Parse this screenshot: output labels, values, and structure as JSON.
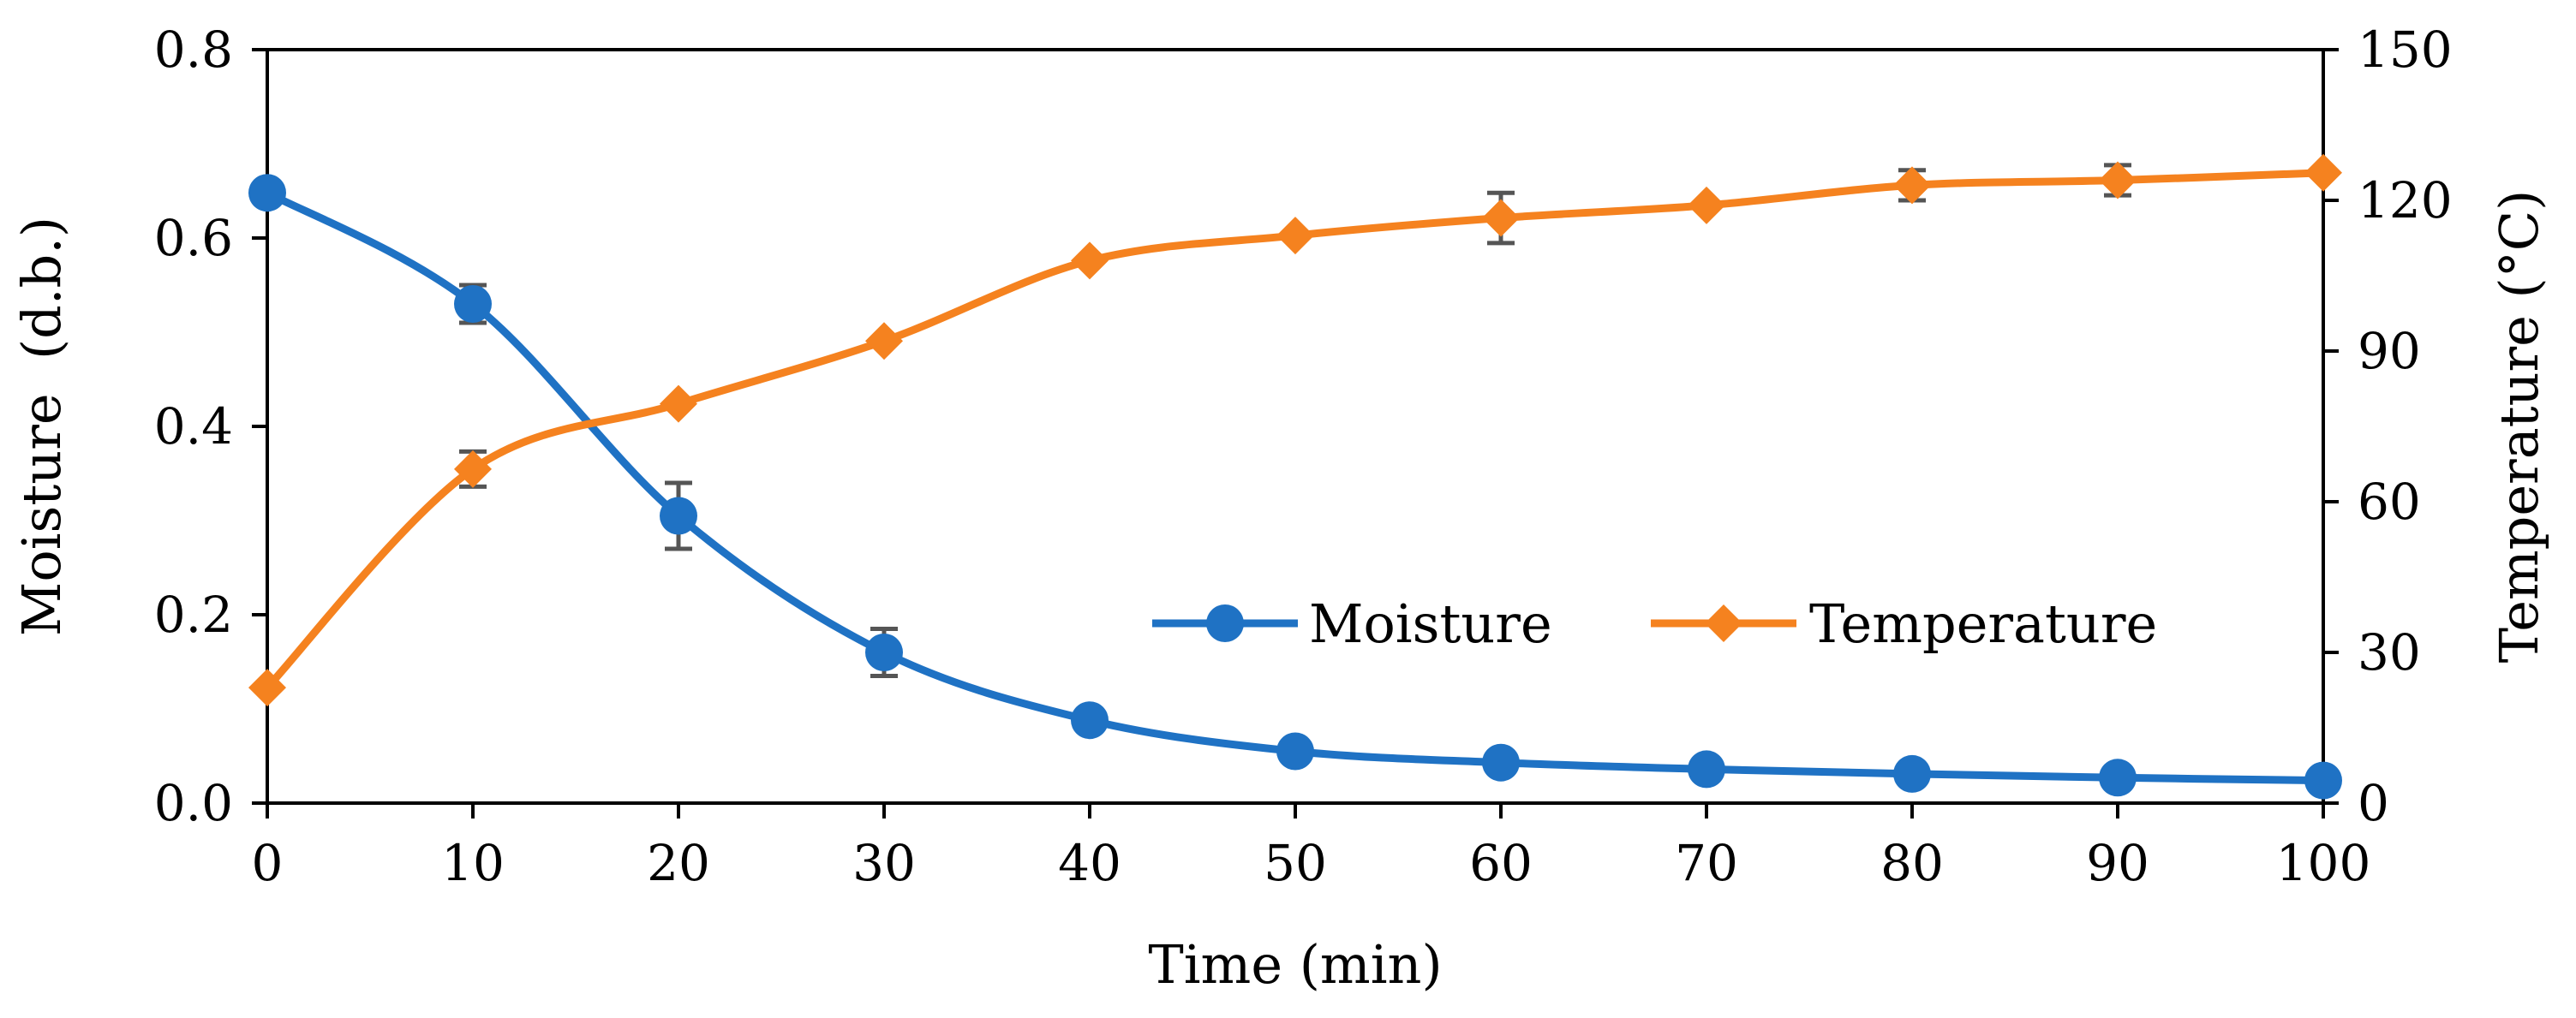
{
  "chart_data": {
    "type": "line",
    "title": "",
    "xlabel": "Time (min)",
    "ylabel_left": "Moisture  (d.b.)",
    "ylabel_right": "Temperature (°C)",
    "x": [
      0,
      10,
      20,
      30,
      40,
      50,
      60,
      70,
      80,
      90,
      100
    ],
    "xlim": [
      0,
      100
    ],
    "ylim_left": [
      0,
      0.8
    ],
    "ylim_right": [
      0,
      150
    ],
    "x_ticks": [
      "0",
      "10",
      "20",
      "30",
      "40",
      "50",
      "60",
      "70",
      "80",
      "90",
      "100"
    ],
    "y_left_ticks": [
      "0.0",
      "0.2",
      "0.4",
      "0.6",
      "0.8"
    ],
    "y_right_ticks": [
      "0",
      "30",
      "60",
      "90",
      "120",
      "150"
    ],
    "grid": false,
    "legend_position": "center-right",
    "series": [
      {
        "name": "Moisture",
        "axis": "left",
        "marker": "circle",
        "color": "#1f72c4",
        "values": [
          0.648,
          0.53,
          0.305,
          0.16,
          0.088,
          0.055,
          0.043,
          0.036,
          0.031,
          0.027,
          0.024
        ],
        "errors": [
          0.0,
          0.02,
          0.035,
          0.025,
          0.0,
          0.0,
          0.0,
          0.0,
          0.0,
          0.0,
          0.0
        ]
      },
      {
        "name": "Temperature",
        "axis": "right",
        "marker": "diamond",
        "color": "#f5821f",
        "values": [
          23,
          66.5,
          79.5,
          92,
          108,
          113,
          116.5,
          119,
          123,
          124,
          125.5
        ],
        "errors": [
          0,
          3.5,
          0,
          0,
          0,
          0,
          5,
          0,
          3,
          3,
          0
        ]
      }
    ]
  }
}
